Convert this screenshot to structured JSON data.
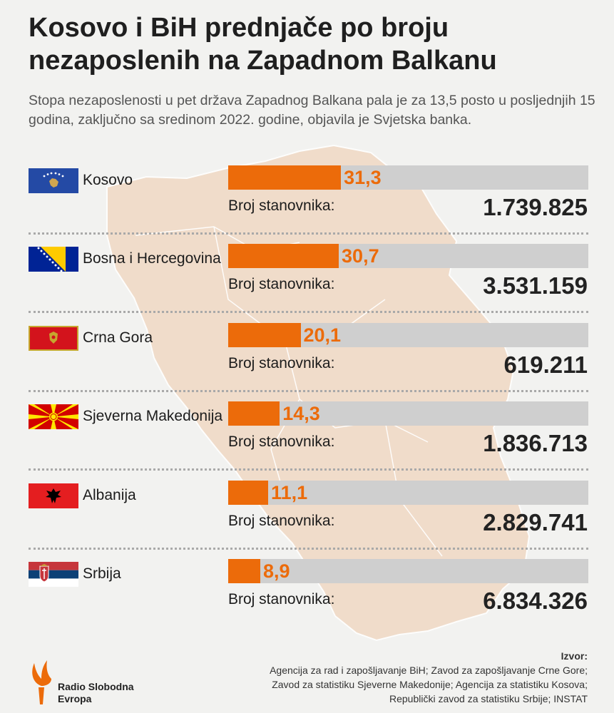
{
  "title": "Kosovo i BiH prednjače po broju nezaposlenih na Zapadnom Balkanu",
  "subtitle": "Stopa nezaposlenosti u pet država Zapadnog Balkana pala je za 13,5 posto u posljednjih 15 godina, zaključno sa sredinom 2022. godine, objavila je Svjetska banka.",
  "population_label": "Broj stanovnika:",
  "colors": {
    "bar": "#ec6b0a",
    "track": "#cfcfcf",
    "background": "#f2f2f0"
  },
  "chart_data": {
    "type": "bar",
    "title": "Kosovo i BiH prednjače po broju nezaposlenih na Zapadnom Balkanu",
    "categories": [
      "Kosovo",
      "Bosna i Hercegovina",
      "Crna Gora",
      "Sjeverna Makedonija",
      "Albanija",
      "Srbija"
    ],
    "values": [
      31.3,
      30.7,
      20.1,
      14.3,
      11.1,
      8.9
    ],
    "value_labels": [
      "31,3",
      "30,7",
      "20,1",
      "14,3",
      "11,1",
      "8,9"
    ],
    "population": [
      "1.739.825",
      "3.531.159",
      "619.211",
      "1.836.713",
      "2.829.741",
      "6.834.326"
    ],
    "xlim": [
      0,
      100
    ],
    "grid": false,
    "orientation": "horizontal"
  },
  "flags": [
    "kosovo-flag-icon",
    "bosnia-flag-icon",
    "montenegro-flag-icon",
    "north-macedonia-flag-icon",
    "albania-flag-icon",
    "serbia-flag-icon"
  ],
  "source": {
    "heading": "Izvor:",
    "lines": [
      "Agencija za rad i zapošljavanje BiH; Zavod za zapošljavanje Crne Gore;",
      "Zavod za statistiku Sjeverne Makedonije; Agencija za statistiku Kosova;",
      "Republički zavod za statistiku Srbije; INSTAT"
    ]
  },
  "logo": {
    "line1": "Radio Slobodna",
    "line2": "Evropa"
  }
}
